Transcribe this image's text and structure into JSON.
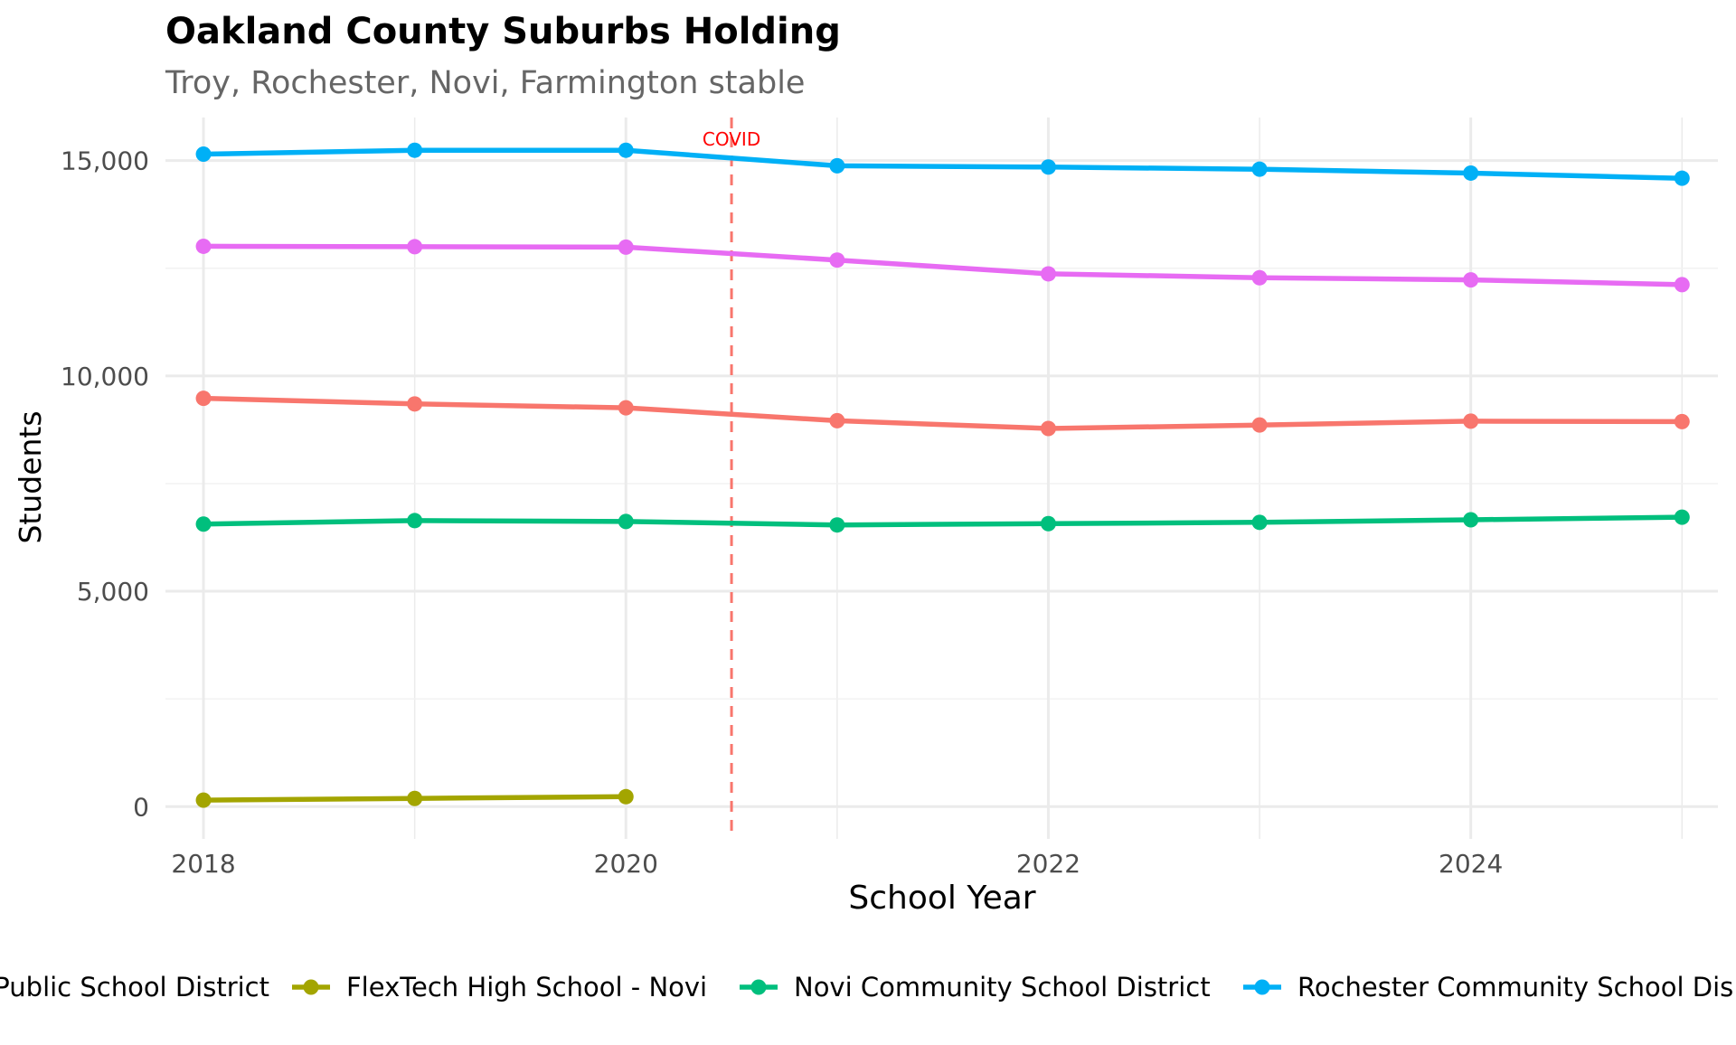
{
  "chart_data": {
    "type": "line",
    "title": "Oakland County Suburbs Holding",
    "subtitle": "Troy, Rochester, Novi, Farmington stable",
    "xlabel": "School Year",
    "ylabel": "Students",
    "xlim": [
      2017.82,
      2025.17
    ],
    "ylim": [
      -750,
      16000
    ],
    "x_ticks": [
      2018,
      2020,
      2022,
      2024
    ],
    "y_ticks": [
      0,
      5000,
      10000,
      15000
    ],
    "y_tick_labels": [
      "0",
      "5,000",
      "10,000",
      "15,000"
    ],
    "grid": true,
    "legend_position": "bottom",
    "annotation": {
      "label": "COVID",
      "x": 2020.5,
      "color": "#FF0000",
      "line_color": "#F8766D"
    },
    "series": [
      {
        "name": "Public School District",
        "color": "#F8766D",
        "points": [
          {
            "x": 2018,
            "y": 9480
          },
          {
            "x": 2019,
            "y": 9350
          },
          {
            "x": 2020,
            "y": 9260
          },
          {
            "x": 2021,
            "y": 8960
          },
          {
            "x": 2022,
            "y": 8780
          },
          {
            "x": 2023,
            "y": 8860
          },
          {
            "x": 2024,
            "y": 8950
          },
          {
            "x": 2025,
            "y": 8940
          }
        ]
      },
      {
        "name": "FlexTech High School - Novi",
        "color": "#A3A500",
        "points": [
          {
            "x": 2018,
            "y": 150
          },
          {
            "x": 2019,
            "y": 190
          },
          {
            "x": 2020,
            "y": 230
          }
        ]
      },
      {
        "name": "Novi Community School District",
        "color": "#00BF7D",
        "points": [
          {
            "x": 2018,
            "y": 6560
          },
          {
            "x": 2019,
            "y": 6640
          },
          {
            "x": 2020,
            "y": 6620
          },
          {
            "x": 2021,
            "y": 6540
          },
          {
            "x": 2022,
            "y": 6570
          },
          {
            "x": 2023,
            "y": 6600
          },
          {
            "x": 2024,
            "y": 6660
          },
          {
            "x": 2025,
            "y": 6720
          }
        ]
      },
      {
        "name": "Rochester Community School Dis",
        "color": "#00B0F6",
        "points": [
          {
            "x": 2018,
            "y": 15150
          },
          {
            "x": 2019,
            "y": 15240
          },
          {
            "x": 2020,
            "y": 15240
          },
          {
            "x": 2021,
            "y": 14880
          },
          {
            "x": 2022,
            "y": 14850
          },
          {
            "x": 2023,
            "y": 14800
          },
          {
            "x": 2024,
            "y": 14710
          },
          {
            "x": 2025,
            "y": 14590
          }
        ]
      },
      {
        "color": "#E76BF3",
        "points": [
          {
            "x": 2018,
            "y": 13010
          },
          {
            "x": 2019,
            "y": 13000
          },
          {
            "x": 2020,
            "y": 12990
          },
          {
            "x": 2021,
            "y": 12690
          },
          {
            "x": 2022,
            "y": 12370
          },
          {
            "x": 2023,
            "y": 12280
          },
          {
            "x": 2024,
            "y": 12230
          },
          {
            "x": 2025,
            "y": 12120
          }
        ]
      }
    ]
  }
}
